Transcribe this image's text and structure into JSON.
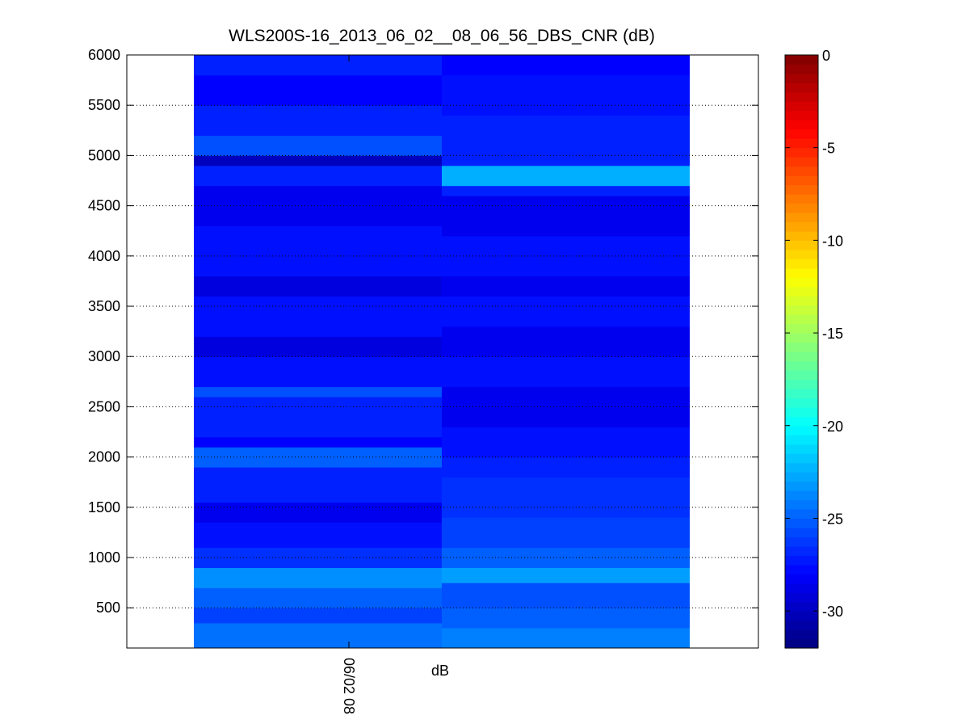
{
  "chart_data": {
    "type": "heatmap",
    "title": "WLS200S-16_2013_06_02__08_06_56_DBS_CNR (dB)",
    "xlabel": "dB",
    "x_tick_labels": [
      "06/02 08"
    ],
    "ylim": [
      100,
      6000
    ],
    "y_ticks": [
      500,
      1000,
      1500,
      2000,
      2500,
      3000,
      3500,
      4000,
      4500,
      5000,
      5500,
      6000
    ],
    "grid": "y-dotted",
    "colormap": "jet",
    "colorbar": {
      "limits": [
        -32,
        0
      ],
      "ticks": [
        0,
        -5,
        -10,
        -15,
        -20,
        -25,
        -30
      ]
    },
    "columns": [
      {
        "column": 1,
        "bands": [
          {
            "from": 100,
            "to": 350,
            "cnr": -24.5
          },
          {
            "from": 350,
            "to": 500,
            "cnr": -26
          },
          {
            "from": 500,
            "to": 700,
            "cnr": -25
          },
          {
            "from": 700,
            "to": 900,
            "cnr": -23.5
          },
          {
            "from": 900,
            "to": 1100,
            "cnr": -26.5
          },
          {
            "from": 1100,
            "to": 1350,
            "cnr": -27.5
          },
          {
            "from": 1350,
            "to": 1550,
            "cnr": -28.5
          },
          {
            "from": 1550,
            "to": 1900,
            "cnr": -27
          },
          {
            "from": 1900,
            "to": 2100,
            "cnr": -25
          },
          {
            "from": 2100,
            "to": 2200,
            "cnr": -28
          },
          {
            "from": 2200,
            "to": 2600,
            "cnr": -27
          },
          {
            "from": 2600,
            "to": 2700,
            "cnr": -25.5
          },
          {
            "from": 2700,
            "to": 3000,
            "cnr": -27.5
          },
          {
            "from": 3000,
            "to": 3200,
            "cnr": -29
          },
          {
            "from": 3200,
            "to": 3600,
            "cnr": -27.5
          },
          {
            "from": 3600,
            "to": 3800,
            "cnr": -29
          },
          {
            "from": 3800,
            "to": 4300,
            "cnr": -27.5
          },
          {
            "from": 4300,
            "to": 4700,
            "cnr": -28.5
          },
          {
            "from": 4700,
            "to": 4900,
            "cnr": -27
          },
          {
            "from": 4900,
            "to": 5000,
            "cnr": -30
          },
          {
            "from": 5000,
            "to": 5200,
            "cnr": -25.5
          },
          {
            "from": 5200,
            "to": 5500,
            "cnr": -27
          },
          {
            "from": 5500,
            "to": 5800,
            "cnr": -28
          },
          {
            "from": 5800,
            "to": 6000,
            "cnr": -27
          }
        ]
      },
      {
        "column": 2,
        "bands": [
          {
            "from": 100,
            "to": 300,
            "cnr": -24
          },
          {
            "from": 300,
            "to": 500,
            "cnr": -25
          },
          {
            "from": 500,
            "to": 750,
            "cnr": -25.5
          },
          {
            "from": 750,
            "to": 900,
            "cnr": -23
          },
          {
            "from": 900,
            "to": 1100,
            "cnr": -25
          },
          {
            "from": 1100,
            "to": 1400,
            "cnr": -26
          },
          {
            "from": 1400,
            "to": 1800,
            "cnr": -26.5
          },
          {
            "from": 1800,
            "to": 2000,
            "cnr": -27
          },
          {
            "from": 2000,
            "to": 2300,
            "cnr": -27.5
          },
          {
            "from": 2300,
            "to": 2700,
            "cnr": -28.5
          },
          {
            "from": 2700,
            "to": 3000,
            "cnr": -27.5
          },
          {
            "from": 3000,
            "to": 3300,
            "cnr": -28.5
          },
          {
            "from": 3300,
            "to": 3600,
            "cnr": -27.5
          },
          {
            "from": 3600,
            "to": 3800,
            "cnr": -28.5
          },
          {
            "from": 3800,
            "to": 4200,
            "cnr": -27.5
          },
          {
            "from": 4200,
            "to": 4600,
            "cnr": -28.5
          },
          {
            "from": 4600,
            "to": 4700,
            "cnr": -27
          },
          {
            "from": 4700,
            "to": 4900,
            "cnr": -22.5
          },
          {
            "from": 4900,
            "to": 5400,
            "cnr": -27
          },
          {
            "from": 5400,
            "to": 5800,
            "cnr": -27.5
          },
          {
            "from": 5800,
            "to": 6000,
            "cnr": -28
          }
        ]
      }
    ]
  }
}
